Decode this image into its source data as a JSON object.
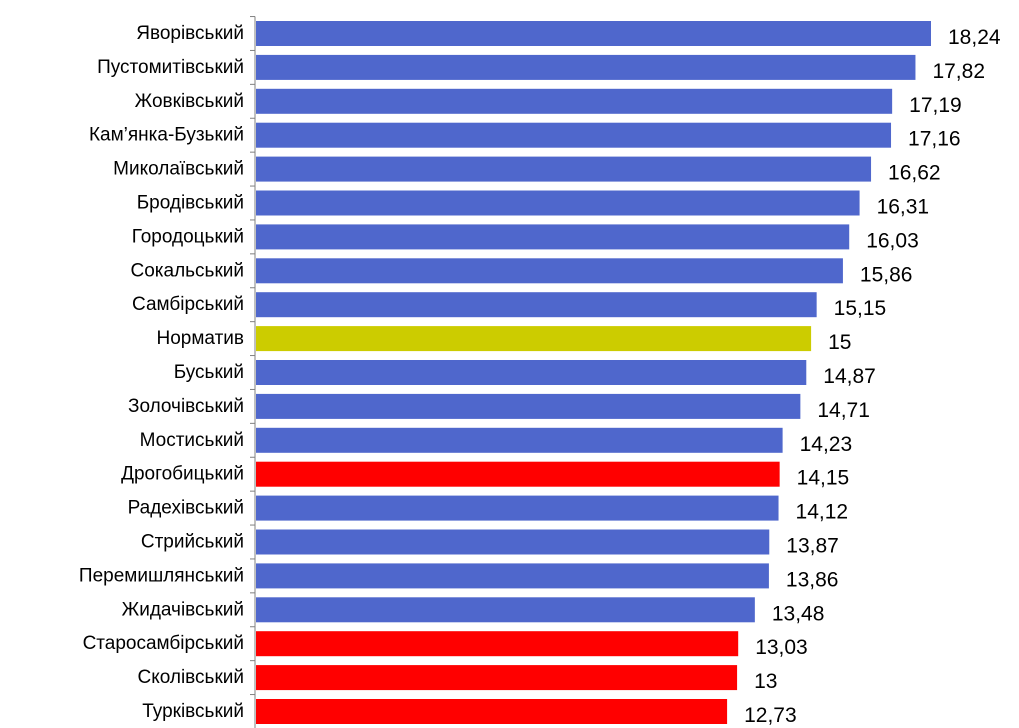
{
  "chart_data": {
    "type": "bar",
    "orientation": "horizontal",
    "title": "",
    "xlabel": "",
    "ylabel": "",
    "categories": [
      "Яворівський",
      "Пустомитівський",
      "Жовківський",
      "Кам’янка-Бузький",
      "Миколаївський",
      "Бродівський",
      "Городоцький",
      "Сокальський",
      "Самбірський",
      "Норматив",
      "Буський",
      "Золочівський",
      "Мостиський",
      "Дрогобицький",
      "Радехівський",
      "Стрийський",
      "Перемишлянський",
      "Жидачівський",
      "Старосамбірський",
      "Сколівський",
      "Турківський"
    ],
    "values": [
      18.24,
      17.82,
      17.19,
      17.16,
      16.62,
      16.31,
      16.03,
      15.86,
      15.15,
      15,
      14.87,
      14.71,
      14.23,
      14.15,
      14.12,
      13.87,
      13.86,
      13.48,
      13.03,
      13,
      12.73
    ],
    "value_labels": [
      "18,24",
      "17,82",
      "17,19",
      "17,16",
      "16,62",
      "16,31",
      "16,03",
      "15,86",
      "15,15",
      "15",
      "14,87",
      "14,71",
      "14,23",
      "14,15",
      "14,12",
      "13,87",
      "13,86",
      "13,48",
      "13,03",
      "13",
      "12,73"
    ],
    "bar_colors": [
      "#4f67cc",
      "#4f67cc",
      "#4f67cc",
      "#4f67cc",
      "#4f67cc",
      "#4f67cc",
      "#4f67cc",
      "#4f67cc",
      "#4f67cc",
      "#cccc00",
      "#4f67cc",
      "#4f67cc",
      "#4f67cc",
      "#ff0000",
      "#4f67cc",
      "#4f67cc",
      "#4f67cc",
      "#4f67cc",
      "#ff0000",
      "#ff0000",
      "#ff0000"
    ],
    "xlim": [
      0,
      18.24
    ],
    "grid": false,
    "legend": "none"
  }
}
